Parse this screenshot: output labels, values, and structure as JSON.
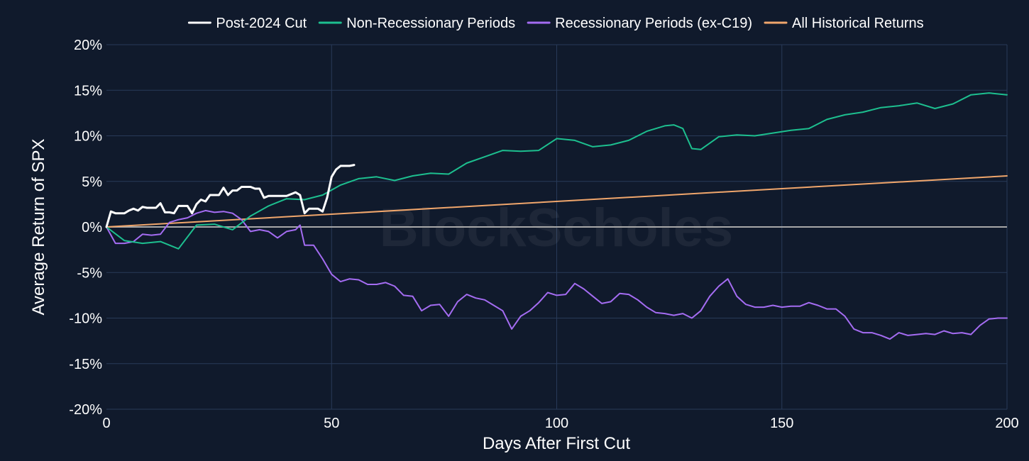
{
  "colors": {
    "background": "#101a2c",
    "grid": "#283a58",
    "zero_line": "#a8a8a8",
    "text": "#ffffff"
  },
  "watermark": "BlockScholes",
  "chart_data": {
    "type": "line",
    "xlabel": "Days After First Cut",
    "ylabel": "Average Return of SPX",
    "xlim": [
      0,
      200
    ],
    "ylim": [
      -20,
      20
    ],
    "x_ticks": [
      0,
      50,
      100,
      150,
      200
    ],
    "x_tick_labels": [
      "0",
      "50",
      "100",
      "150",
      "200"
    ],
    "y_ticks": [
      20,
      15,
      10,
      5,
      0,
      -5,
      -10,
      -15,
      -20
    ],
    "y_tick_labels": [
      "20%",
      "15%",
      "10%",
      "5%",
      "0%",
      "-5%",
      "-10%",
      "-15%",
      "-20%"
    ],
    "grid": true,
    "legend_position": "top",
    "series": [
      {
        "name": "Post-2024 Cut",
        "color": "#ffffff",
        "x": [
          0,
          1,
          2,
          3,
          4,
          5,
          6,
          7,
          8,
          9,
          10,
          11,
          12,
          13,
          14,
          15,
          16,
          17,
          18,
          19,
          20,
          21,
          22,
          23,
          24,
          25,
          26,
          27,
          28,
          29,
          30,
          31,
          32,
          33,
          34,
          35,
          36,
          37,
          38,
          39,
          40,
          41,
          42,
          43,
          44,
          45,
          46,
          47,
          48,
          49,
          50,
          51,
          52,
          53,
          54,
          55
        ],
        "y": [
          0,
          1.7,
          1.5,
          1.5,
          1.5,
          1.8,
          2.0,
          1.8,
          2.2,
          2.1,
          2.1,
          2.1,
          2.6,
          1.6,
          1.6,
          1.5,
          2.3,
          2.3,
          2.3,
          1.5,
          2.5,
          3.0,
          2.8,
          3.5,
          3.5,
          3.5,
          4.3,
          3.5,
          4.0,
          4.0,
          4.4,
          4.4,
          4.4,
          4.2,
          4.2,
          3.2,
          3.4,
          3.4,
          3.4,
          3.4,
          3.4,
          3.6,
          3.8,
          3.5,
          1.5,
          2.0,
          2.0,
          2.0,
          1.7,
          3.2,
          5.5,
          6.3,
          6.7,
          6.7,
          6.7,
          6.8
        ]
      },
      {
        "name": "Non-Recessionary Periods",
        "color": "#1dbf8f",
        "x": [
          0,
          4,
          8,
          12,
          16,
          20,
          24,
          28,
          32,
          36,
          40,
          44,
          48,
          52,
          56,
          60,
          64,
          68,
          72,
          76,
          80,
          84,
          88,
          92,
          96,
          100,
          104,
          108,
          112,
          116,
          120,
          124,
          126,
          128,
          130,
          132,
          136,
          140,
          144,
          148,
          152,
          156,
          160,
          164,
          168,
          172,
          176,
          180,
          184,
          188,
          192,
          196,
          200
        ],
        "y": [
          0,
          -1.5,
          -1.8,
          -1.6,
          -2.4,
          0.2,
          0.3,
          -0.3,
          1.2,
          2.3,
          3.1,
          3.0,
          3.5,
          4.6,
          5.3,
          5.5,
          5.1,
          5.6,
          5.9,
          5.8,
          7.0,
          7.7,
          8.4,
          8.3,
          8.4,
          9.7,
          9.5,
          8.8,
          9.0,
          9.5,
          10.5,
          11.1,
          11.2,
          10.8,
          8.6,
          8.5,
          9.9,
          10.1,
          10.0,
          10.3,
          10.6,
          10.8,
          11.8,
          12.3,
          12.6,
          13.1,
          13.3,
          13.6,
          13.0,
          13.5,
          14.5,
          14.7,
          14.5
        ]
      },
      {
        "name": "Recessionary Periods (ex-C19)",
        "color": "#a46cf2",
        "x": [
          0,
          2,
          4,
          6,
          8,
          10,
          12,
          14,
          16,
          18,
          20,
          22,
          24,
          26,
          28,
          30,
          32,
          34,
          36,
          38,
          40,
          42,
          43,
          44,
          46,
          48,
          50,
          52,
          54,
          56,
          58,
          60,
          62,
          64,
          66,
          68,
          70,
          72,
          74,
          76,
          78,
          80,
          82,
          84,
          86,
          88,
          90,
          92,
          94,
          96,
          98,
          100,
          102,
          104,
          106,
          108,
          110,
          112,
          114,
          116,
          118,
          120,
          122,
          124,
          126,
          128,
          130,
          132,
          134,
          136,
          138,
          140,
          142,
          144,
          146,
          148,
          150,
          152,
          154,
          156,
          158,
          160,
          162,
          164,
          166,
          168,
          170,
          172,
          174,
          176,
          178,
          180,
          182,
          184,
          186,
          188,
          190,
          192,
          194,
          196,
          198,
          200
        ],
        "y": [
          0,
          -1.8,
          -1.8,
          -1.6,
          -0.8,
          -0.9,
          -0.8,
          0.5,
          0.8,
          1.0,
          1.5,
          1.8,
          1.6,
          1.7,
          1.5,
          0.8,
          -0.5,
          -0.3,
          -0.5,
          -1.2,
          -0.5,
          -0.3,
          0.2,
          -2.0,
          -2.0,
          -3.5,
          -5.2,
          -6.0,
          -5.7,
          -5.8,
          -6.3,
          -6.3,
          -6.1,
          -6.5,
          -7.5,
          -7.6,
          -9.2,
          -8.6,
          -8.5,
          -9.8,
          -8.2,
          -7.4,
          -7.8,
          -8.0,
          -8.6,
          -9.2,
          -11.2,
          -9.8,
          -9.2,
          -8.3,
          -7.2,
          -7.5,
          -7.4,
          -6.2,
          -6.8,
          -7.6,
          -8.4,
          -8.2,
          -7.3,
          -7.4,
          -8.0,
          -8.8,
          -9.4,
          -9.5,
          -9.7,
          -9.5,
          -10.0,
          -9.2,
          -7.6,
          -6.5,
          -5.7,
          -7.6,
          -8.5,
          -8.8,
          -8.8,
          -8.6,
          -8.8,
          -8.7,
          -8.7,
          -8.3,
          -8.6,
          -9.0,
          -9.0,
          -9.8,
          -11.2,
          -11.6,
          -11.6,
          -11.9,
          -12.3,
          -11.6,
          -11.9,
          -11.8,
          -11.7,
          -11.8,
          -11.4,
          -11.7,
          -11.6,
          -11.8,
          -10.8,
          -10.1,
          -10.0,
          -10.0
        ]
      },
      {
        "name": "All Historical Returns",
        "color": "#f0a66c",
        "x": [
          0,
          200
        ],
        "y": [
          0,
          5.6
        ]
      }
    ]
  }
}
